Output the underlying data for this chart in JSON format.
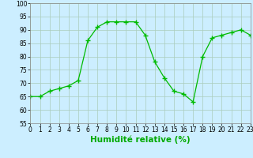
{
  "x": [
    0,
    1,
    2,
    3,
    4,
    5,
    6,
    7,
    8,
    9,
    10,
    11,
    12,
    13,
    14,
    15,
    16,
    17,
    18,
    19,
    20,
    21,
    22,
    23
  ],
  "y": [
    65,
    65,
    67,
    68,
    69,
    71,
    86,
    91,
    93,
    93,
    93,
    93,
    88,
    78,
    72,
    67,
    66,
    63,
    80,
    87,
    88,
    89,
    90,
    88
  ],
  "line_color": "#00bb00",
  "marker_color": "#00bb00",
  "bg_color": "#cceeff",
  "grid_color": "#aaccbb",
  "xlabel": "Humidité relative (%)",
  "xlabel_color": "#00aa00",
  "ylim": [
    55,
    100
  ],
  "xlim": [
    0,
    23
  ],
  "yticks": [
    55,
    60,
    65,
    70,
    75,
    80,
    85,
    90,
    95,
    100
  ],
  "xticks": [
    0,
    1,
    2,
    3,
    4,
    5,
    6,
    7,
    8,
    9,
    10,
    11,
    12,
    13,
    14,
    15,
    16,
    17,
    18,
    19,
    20,
    21,
    22,
    23
  ],
  "tick_fontsize": 5.5,
  "xlabel_fontsize": 7.5
}
